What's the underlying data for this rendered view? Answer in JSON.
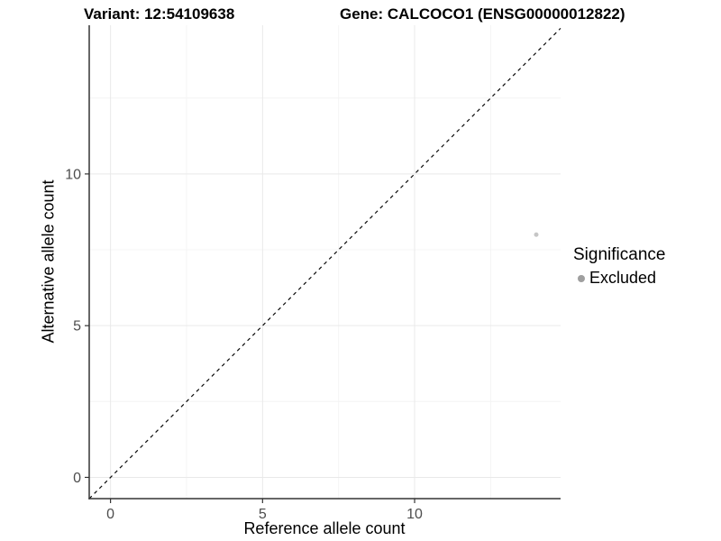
{
  "header": {
    "variant_title": "Variant: 12:54109638",
    "gene_title": "Gene: CALCOCO1 (ENSG00000012822)"
  },
  "legend": {
    "title": "Significance",
    "items": [
      {
        "label": "Excluded",
        "color": "#9f9f9f"
      }
    ]
  },
  "chart_data": {
    "type": "scatter",
    "title": "",
    "xlabel": "Reference allele count",
    "ylabel": "Alternative allele count",
    "xlim": [
      -0.7,
      14.8
    ],
    "ylim": [
      -0.7,
      14.9
    ],
    "x_ticks": [
      0,
      5,
      10
    ],
    "y_ticks": [
      0,
      5,
      10
    ],
    "x_minor_ticks": [
      2.5,
      7.5,
      12.5
    ],
    "y_minor_ticks": [
      2.5,
      7.5,
      12.5
    ],
    "series": [
      {
        "name": "Excluded",
        "color": "#c6c6c6",
        "point_radius": 2.5,
        "points": [
          {
            "x": 14,
            "y": 8
          }
        ]
      }
    ],
    "reference_line": {
      "kind": "identity",
      "slope": 1,
      "intercept": 0,
      "style": "dashed"
    },
    "grid": "major+minor",
    "legend_position": "right"
  },
  "colors": {
    "background": "#ffffff",
    "grid_major": "#e9e9e9",
    "grid_minor": "#f4f4f4",
    "axis_line": "#333333",
    "tick_label": "#4d4d4d",
    "title_text": "#000000",
    "dashed_line": "#0a0a0a"
  }
}
